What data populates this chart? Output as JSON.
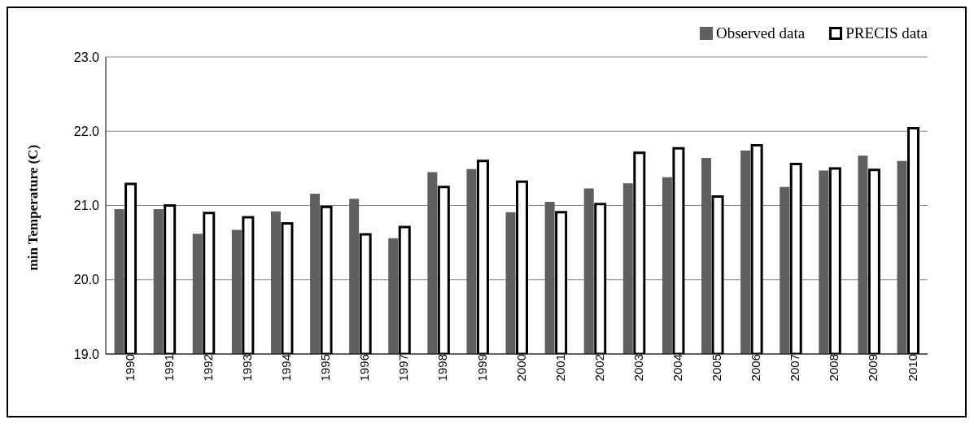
{
  "chart_data": {
    "type": "bar",
    "ylabel": "min Temperature (C)",
    "categories": [
      "1990",
      "1991",
      "1992",
      "1993",
      "1994",
      "1995",
      "1996",
      "1997",
      "1998",
      "1999",
      "2000",
      "2001",
      "2002",
      "2003",
      "2004",
      "2005",
      "2006",
      "2007",
      "2008",
      "2009",
      "2010"
    ],
    "series": [
      {
        "name": "Observed data",
        "color": "#606060",
        "values": [
          20.95,
          20.95,
          20.62,
          20.67,
          20.92,
          21.16,
          21.09,
          20.56,
          21.45,
          21.49,
          20.91,
          21.05,
          21.23,
          21.3,
          21.38,
          21.64,
          21.74,
          21.25,
          21.47,
          21.67,
          21.6
        ]
      },
      {
        "name": "PRECIS data",
        "color": "#ffffff",
        "values": [
          21.29,
          21.0,
          20.9,
          20.84,
          20.76,
          20.98,
          20.61,
          20.71,
          21.25,
          21.6,
          21.32,
          20.91,
          21.02,
          21.71,
          21.77,
          21.12,
          21.81,
          21.56,
          21.5,
          21.48,
          22.04
        ]
      }
    ],
    "ylim": [
      19,
      23
    ],
    "yticks": [
      {
        "value": 19,
        "label": "19.0"
      },
      {
        "value": 20,
        "label": "20.0"
      },
      {
        "value": 21,
        "label": "21.0"
      },
      {
        "value": 22,
        "label": "22.0"
      },
      {
        "value": 23,
        "label": "23.0"
      }
    ],
    "grid": "y",
    "legend": "top right"
  }
}
